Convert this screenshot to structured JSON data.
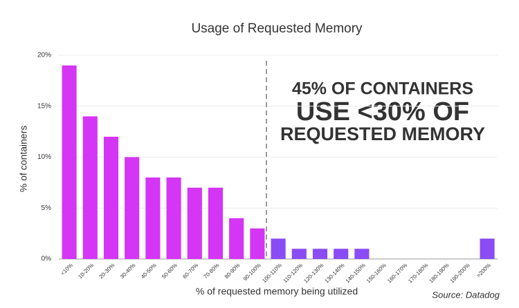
{
  "chart_data": {
    "type": "bar",
    "title": "Usage of Requested Memory",
    "xlabel": "% of requested memory being utilized",
    "ylabel": "% of containers",
    "categories": [
      "<10%",
      "10-20%",
      "20-30%",
      "30-40%",
      "40-50%",
      "50-60%",
      "60-70%",
      "70-80%",
      "80-90%",
      "90-100%",
      "100-110%",
      "110-120%",
      "120-130%",
      "130-140%",
      "140-150%",
      "150-160%",
      "160-170%",
      "170-180%",
      "180-190%",
      "190-200%",
      ">200%"
    ],
    "values": [
      19,
      14,
      12,
      10,
      8,
      8,
      7,
      7,
      4,
      3,
      2,
      1,
      1,
      1,
      1,
      0,
      0,
      0,
      0,
      0,
      2
    ],
    "colors": [
      "#d535f5",
      "#d535f5",
      "#d535f5",
      "#d535f5",
      "#d535f5",
      "#d535f5",
      "#d535f5",
      "#d535f5",
      "#d535f5",
      "#d535f5",
      "#8a4cf5",
      "#8a4cf5",
      "#8a4cf5",
      "#8a4cf5",
      "#8a4cf5",
      "#8a4cf5",
      "#8a4cf5",
      "#8a4cf5",
      "#8a4cf5",
      "#8a4cf5",
      "#8a4cf5"
    ],
    "ylim": [
      0,
      20
    ],
    "yticks": [
      {
        "value": 0,
        "label": "0%"
      },
      {
        "value": 5,
        "label": "5%"
      },
      {
        "value": 10,
        "label": "10%"
      },
      {
        "value": 15,
        "label": "15%"
      },
      {
        "value": 20,
        "label": "20%"
      }
    ],
    "grid": true,
    "annotation": [
      "45% OF CONTAINERS",
      "USE <30% OF",
      "REQUESTED MEMORY"
    ],
    "annotation_color": "#f5b942",
    "source": "Source: Datadog"
  }
}
